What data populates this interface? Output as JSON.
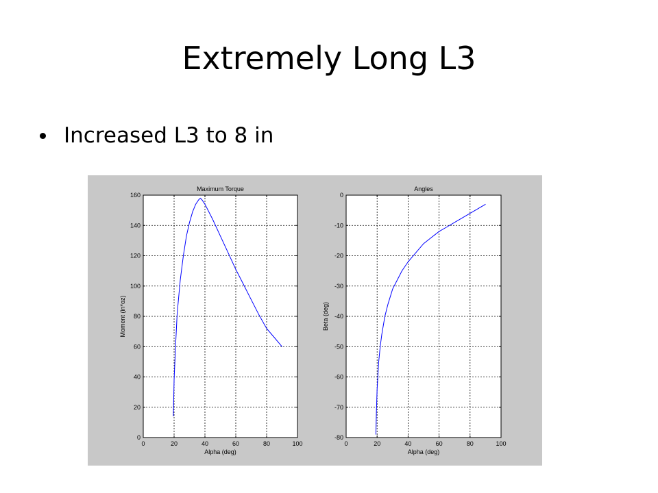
{
  "slide": {
    "title": "Extremely Long L3",
    "bullets": [
      "Increased L3 to 8 in"
    ]
  },
  "colors": {
    "panel_background": "#c8c8c8",
    "axes_background": "#ffffff",
    "line": "#0000ff",
    "grid": "#000000"
  },
  "chart_data": [
    {
      "type": "line",
      "title": "Maximum Torque",
      "xlabel": "Alpha (deg)",
      "ylabel": "Moment (in*oz)",
      "xlim": [
        0,
        100
      ],
      "ylim": [
        0,
        160
      ],
      "xticks": [
        0,
        20,
        40,
        60,
        80,
        100
      ],
      "yticks": [
        0,
        20,
        40,
        60,
        80,
        100,
        120,
        140,
        160
      ],
      "grid": "dotted",
      "series": [
        {
          "color": "#0000ff",
          "x": [
            19.5,
            20,
            21,
            22,
            24,
            26,
            28,
            30,
            32,
            34,
            36,
            37,
            38,
            40,
            45,
            50,
            55,
            60,
            65,
            70,
            75,
            80,
            85,
            90
          ],
          "y": [
            14,
            38,
            62,
            82,
            104,
            120,
            133,
            142,
            149,
            154,
            157,
            158,
            157,
            154,
            144,
            133,
            122,
            111,
            101,
            91,
            81,
            72,
            66,
            60
          ]
        }
      ]
    },
    {
      "type": "line",
      "title": "Angles",
      "xlabel": "Alpha (deg)",
      "ylabel": "Beta (deg)",
      "xlim": [
        0,
        100
      ],
      "ylim": [
        -80,
        0
      ],
      "xticks": [
        0,
        20,
        40,
        60,
        80,
        100
      ],
      "yticks": [
        -80,
        -70,
        -60,
        -50,
        -40,
        -30,
        -20,
        -10,
        0
      ],
      "grid": "dotted",
      "series": [
        {
          "color": "#0000ff",
          "x": [
            19.2,
            19.5,
            20,
            21,
            22,
            23,
            25,
            27,
            30,
            33,
            36,
            40,
            45,
            50,
            55,
            60,
            65,
            70,
            75,
            80,
            85,
            90
          ],
          "y": [
            -79,
            -72,
            -64,
            -55,
            -50,
            -46,
            -40,
            -36,
            -31,
            -28,
            -25,
            -22,
            -19,
            -16,
            -14,
            -12,
            -10.5,
            -9,
            -7.5,
            -6,
            -4.5,
            -3
          ]
        }
      ]
    }
  ]
}
